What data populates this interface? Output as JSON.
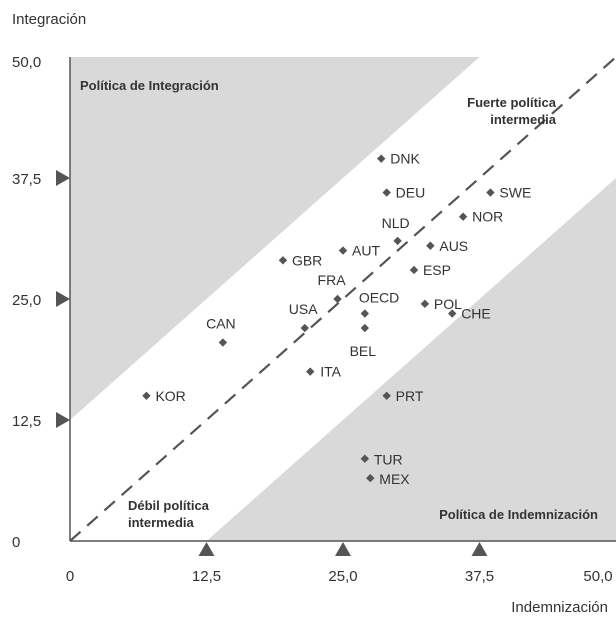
{
  "chart_data": {
    "type": "scatter",
    "xlabel": "Indemnización",
    "ylabel": "Integración",
    "xlim": [
      0,
      50
    ],
    "ylim": [
      0,
      50
    ],
    "x_ticks": [
      "0",
      "12,5",
      "25,0",
      "37,5",
      "50,0"
    ],
    "y_ticks": [
      "0",
      "12,5",
      "25,0",
      "37,5",
      "50,0"
    ],
    "grid": false,
    "regions": {
      "integration": "Política de Integración",
      "strong": [
        "Fuerte política",
        "intermedia"
      ],
      "weak": [
        "Débil política",
        "intermedia"
      ],
      "compensation": "Política de Indemnización"
    },
    "colors": {
      "shade": "#d9d9d9",
      "marker": "#555555",
      "axis": "#555555"
    },
    "points": [
      {
        "label": "DNK",
        "x": 28.5,
        "y": 39.5
      },
      {
        "label": "DEU",
        "x": 29.0,
        "y": 36.0
      },
      {
        "label": "SWE",
        "x": 38.5,
        "y": 36.0
      },
      {
        "label": "NOR",
        "x": 36.0,
        "y": 33.5
      },
      {
        "label": "NLD",
        "x": 30.0,
        "y": 31.0
      },
      {
        "label": "AUS",
        "x": 33.0,
        "y": 30.5
      },
      {
        "label": "AUT",
        "x": 25.0,
        "y": 30.0
      },
      {
        "label": "GBR",
        "x": 19.5,
        "y": 29.0
      },
      {
        "label": "ESP",
        "x": 31.5,
        "y": 28.0
      },
      {
        "label": "FRA",
        "x": 24.5,
        "y": 25.0
      },
      {
        "label": "POL",
        "x": 32.5,
        "y": 24.5
      },
      {
        "label": "OECD",
        "x": 27.0,
        "y": 23.5
      },
      {
        "label": "CHE",
        "x": 35.0,
        "y": 23.5
      },
      {
        "label": "USA",
        "x": 21.5,
        "y": 22.0
      },
      {
        "label": "BEL",
        "x": 27.0,
        "y": 22.0
      },
      {
        "label": "CAN",
        "x": 14.0,
        "y": 20.5
      },
      {
        "label": "ITA",
        "x": 22.0,
        "y": 17.5
      },
      {
        "label": "KOR",
        "x": 7.0,
        "y": 15.0
      },
      {
        "label": "PRT",
        "x": 29.0,
        "y": 15.0
      },
      {
        "label": "TUR",
        "x": 27.0,
        "y": 8.5
      },
      {
        "label": "MEX",
        "x": 27.5,
        "y": 6.5
      }
    ]
  }
}
